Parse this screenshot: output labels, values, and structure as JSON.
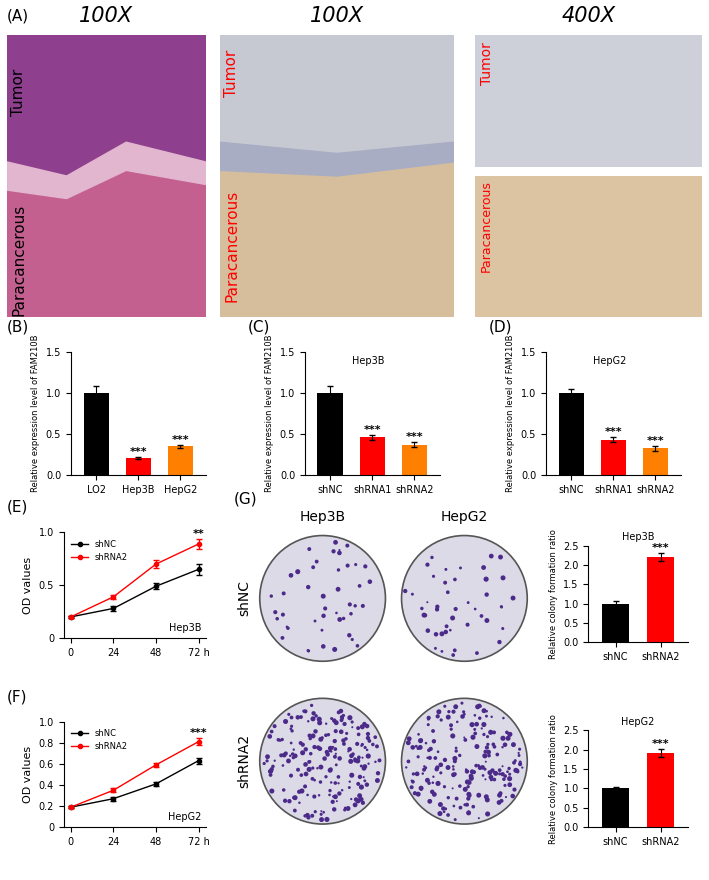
{
  "panel_A": {
    "label": "(A)",
    "images": [
      {
        "header": "100X",
        "labels": [
          "Tumor",
          "Paracancerous"
        ]
      },
      {
        "header": "100X",
        "labels": [
          "Tumor",
          "Paracancerous"
        ]
      },
      {
        "header": "400X",
        "labels": [
          "Tumor",
          "Paracancerous"
        ]
      }
    ]
  },
  "panel_G_plates": {
    "label": "(G)",
    "columns": [
      "Hep3B",
      "HepG2"
    ],
    "rows": [
      "shNC",
      "shRNA2"
    ]
  },
  "chart_data": [
    {
      "label": "(B)",
      "type": "bar",
      "categories": [
        "LO2",
        "Hep3B",
        "HepG2"
      ],
      "values": [
        1.0,
        0.21,
        0.35
      ],
      "errors": [
        0.08,
        0.01,
        0.02
      ],
      "colors": [
        "#000000",
        "#ff0000",
        "#ff7f00"
      ],
      "significance": [
        null,
        "***",
        "***"
      ],
      "ylabel": "Relative expression level of FAM210B",
      "ylim": [
        0,
        1.5
      ],
      "yticks": [
        {
          "value": 0,
          "label": "0.0"
        },
        {
          "value": 0.5,
          "label": "0.5"
        },
        {
          "value": 1,
          "label": "1.0"
        },
        {
          "value": 1.5,
          "label": "1.5"
        }
      ]
    },
    {
      "label": "(C)",
      "type": "bar",
      "annotation": "Hep3B",
      "categories": [
        "shNC",
        "shRNA1",
        "shRNA2"
      ],
      "values": [
        1.0,
        0.46,
        0.37
      ],
      "errors": [
        0.08,
        0.03,
        0.03
      ],
      "colors": [
        "#000000",
        "#ff0000",
        "#ff7f00"
      ],
      "significance": [
        null,
        "***",
        "***"
      ],
      "ylabel": "Relative expression level of FAM210B",
      "ylim": [
        0,
        1.5
      ],
      "yticks": [
        {
          "value": 0,
          "label": "0.0"
        },
        {
          "value": 0.5,
          "label": "0.5"
        },
        {
          "value": 1,
          "label": "1.0"
        },
        {
          "value": 1.5,
          "label": "1.5"
        }
      ]
    },
    {
      "label": "(D)",
      "type": "bar",
      "annotation": "HepG2",
      "categories": [
        "shNC",
        "shRNA1",
        "shRNA2"
      ],
      "values": [
        1.0,
        0.43,
        0.33
      ],
      "errors": [
        0.05,
        0.03,
        0.03
      ],
      "colors": [
        "#000000",
        "#ff0000",
        "#ff7f00"
      ],
      "significance": [
        null,
        "***",
        "***"
      ],
      "ylabel": "Relative expression level of FAM210B",
      "ylim": [
        0,
        1.5
      ],
      "yticks": [
        {
          "value": 0,
          "label": "0.0"
        },
        {
          "value": 0.5,
          "label": "0.5"
        },
        {
          "value": 1,
          "label": "1.0"
        },
        {
          "value": 1.5,
          "label": "1.5"
        }
      ]
    },
    {
      "label": "(E)",
      "type": "line",
      "annotation": "Hep3B",
      "x": [
        0,
        24,
        48,
        72
      ],
      "xlim": [
        -4,
        76
      ],
      "xticks": [
        0,
        24,
        48,
        {
          "value": 72,
          "label": "72 h"
        }
      ],
      "series": [
        {
          "name": "shNC",
          "color": "#000000",
          "marker": "o",
          "values": [
            0.2,
            0.28,
            0.49,
            0.65
          ],
          "errors": [
            0.01,
            0.02,
            0.03,
            0.05
          ]
        },
        {
          "name": "shRNA2",
          "color": "#ff0000",
          "marker": "o",
          "values": [
            0.2,
            0.39,
            0.7,
            0.89
          ],
          "errors": [
            0.01,
            0.02,
            0.04,
            0.05
          ]
        }
      ],
      "significance": [
        null,
        null,
        null,
        "**"
      ],
      "legend": "upper left",
      "ylabel": "OD values",
      "ylim": [
        0,
        1.0
      ],
      "yticks": [
        0,
        0.5,
        {
          "value": 1,
          "label": "1.0"
        }
      ]
    },
    {
      "label": "(F)",
      "type": "line",
      "annotation": "HepG2",
      "x": [
        0,
        24,
        48,
        72
      ],
      "xlim": [
        -4,
        76
      ],
      "xticks": [
        0,
        24,
        48,
        {
          "value": 72,
          "label": "72 h"
        }
      ],
      "series": [
        {
          "name": "shNC",
          "color": "#000000",
          "marker": "o",
          "values": [
            0.19,
            0.27,
            0.41,
            0.63
          ],
          "errors": [
            0.01,
            0.02,
            0.02,
            0.03
          ]
        },
        {
          "name": "shRNA2",
          "color": "#ff0000",
          "marker": "o",
          "values": [
            0.19,
            0.35,
            0.59,
            0.81
          ],
          "errors": [
            0.01,
            0.02,
            0.02,
            0.03
          ]
        }
      ],
      "significance": [
        null,
        null,
        null,
        "***"
      ],
      "legend": "upper left",
      "ylabel": "OD values",
      "ylim": [
        0,
        1.0
      ],
      "yticks": [
        0,
        0.2,
        0.4,
        0.6,
        0.8,
        {
          "value": 1,
          "label": "1.0"
        }
      ]
    },
    {
      "type": "bar",
      "annotation": "Hep3B",
      "categories": [
        "shNC",
        "shRNA2"
      ],
      "values": [
        1.0,
        2.2
      ],
      "errors": [
        0.06,
        0.1
      ],
      "colors": [
        "#000000",
        "#ff0000"
      ],
      "significance": [
        null,
        "***"
      ],
      "ylabel": "Relative colony formation ratio",
      "ylim": [
        0,
        2.5
      ],
      "yticks": [
        {
          "value": 0,
          "label": "0.0"
        },
        0.5,
        {
          "value": 1,
          "label": "1.0"
        },
        1.5,
        {
          "value": 2,
          "label": "2.0"
        },
        2.5
      ]
    },
    {
      "type": "bar",
      "annotation": "HepG2",
      "categories": [
        "shNC",
        "shRNA2"
      ],
      "values": [
        1.0,
        1.92
      ],
      "errors": [
        0.05,
        0.1
      ],
      "colors": [
        "#000000",
        "#ff0000"
      ],
      "significance": [
        null,
        "***"
      ],
      "ylabel": "Relative colony formation ratio",
      "ylim": [
        0,
        2.5
      ],
      "yticks": [
        {
          "value": 0,
          "label": "0.0"
        },
        0.5,
        {
          "value": 1,
          "label": "1.0"
        },
        1.5,
        {
          "value": 2,
          "label": "2.0"
        },
        2.5
      ]
    }
  ]
}
